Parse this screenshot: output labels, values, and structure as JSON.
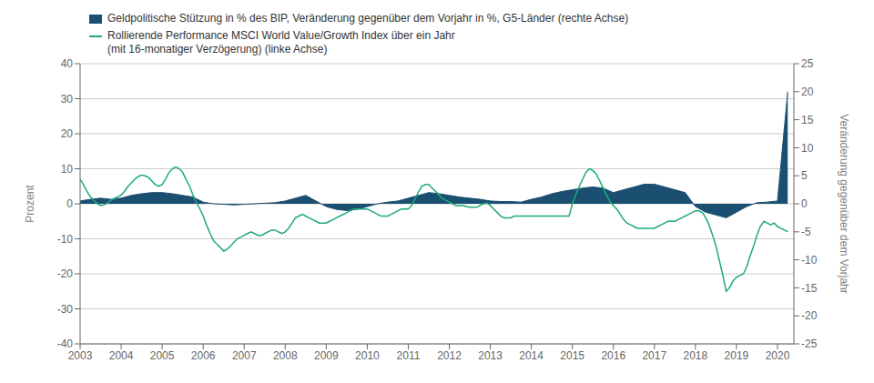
{
  "chart_data": {
    "type": "line",
    "xlim": [
      2003,
      2020.4
    ],
    "xticks": [
      2003,
      2004,
      2005,
      2006,
      2007,
      2008,
      2009,
      2010,
      2011,
      2012,
      2013,
      2014,
      2015,
      2016,
      2017,
      2018,
      2019,
      2020
    ],
    "ylim": [
      -40,
      40
    ],
    "yticks": [
      -40,
      -30,
      -20,
      -10,
      0,
      10,
      20,
      30,
      40
    ],
    "y2lim": [
      -25,
      25
    ],
    "y2ticks": [
      -25,
      -20,
      -15,
      -10,
      -5,
      0,
      5,
      10,
      15,
      20,
      25
    ],
    "ylabel": "Prozent",
    "y2label": "Veränderung gegenüber dem Vorjahr",
    "grid": true,
    "legend": "upper left",
    "series": [
      {
        "name": "Geldpolitische Stützung in % des BIP, Veränderung gegenüber dem Vorjahr in %, G5-Länder (rechte Achse)",
        "type": "area",
        "axis": "y2",
        "color": "#1b4f72",
        "x": [
          2003.0,
          2003.25,
          2003.5,
          2003.75,
          2004.0,
          2004.25,
          2004.5,
          2004.75,
          2005.0,
          2005.25,
          2005.5,
          2005.75,
          2006.0,
          2006.25,
          2006.5,
          2006.75,
          2007.0,
          2007.25,
          2007.5,
          2007.75,
          2008.0,
          2008.25,
          2008.5,
          2008.75,
          2009.0,
          2009.25,
          2009.5,
          2009.75,
          2010.0,
          2010.25,
          2010.5,
          2010.75,
          2011.0,
          2011.25,
          2011.5,
          2011.75,
          2012.0,
          2012.25,
          2012.5,
          2012.75,
          2013.0,
          2013.25,
          2013.5,
          2013.75,
          2014.0,
          2014.25,
          2014.5,
          2014.75,
          2015.0,
          2015.25,
          2015.5,
          2015.75,
          2016.0,
          2016.25,
          2016.5,
          2016.75,
          2017.0,
          2017.25,
          2017.5,
          2017.75,
          2018.0,
          2018.25,
          2018.5,
          2018.75,
          2019.0,
          2019.25,
          2019.5,
          2019.75,
          2020.0,
          2020.25
        ],
        "values": [
          0.5,
          0.8,
          1.0,
          0.8,
          1.0,
          1.5,
          1.8,
          2.0,
          2.0,
          1.8,
          1.5,
          1.2,
          0.3,
          0.0,
          -0.1,
          -0.2,
          -0.1,
          0.0,
          0.1,
          0.2,
          0.5,
          1.0,
          1.5,
          0.5,
          -0.5,
          -1.0,
          -1.2,
          -1.0,
          -0.5,
          0.0,
          0.3,
          0.5,
          1.0,
          1.5,
          2.0,
          1.8,
          1.5,
          1.2,
          1.0,
          0.8,
          0.5,
          0.4,
          0.4,
          0.3,
          0.8,
          1.2,
          1.8,
          2.2,
          2.5,
          2.8,
          3.0,
          2.8,
          2.0,
          2.5,
          3.0,
          3.5,
          3.5,
          3.0,
          2.5,
          2.0,
          -0.5,
          -1.5,
          -2.0,
          -2.5,
          -1.5,
          -0.5,
          0.2,
          0.3,
          0.5,
          20.0
        ]
      },
      {
        "name": "Rollierende Performance MSCI World Value/Growth Index über ein Jahr\n(mit 16-monatiger Verzögerung) (linke Achse)",
        "type": "line",
        "axis": "y",
        "color": "#1daa78",
        "x": [
          2003.0,
          2003.08,
          2003.17,
          2003.25,
          2003.33,
          2003.42,
          2003.5,
          2003.58,
          2003.67,
          2003.75,
          2003.83,
          2003.92,
          2004.0,
          2004.08,
          2004.17,
          2004.25,
          2004.33,
          2004.42,
          2004.5,
          2004.58,
          2004.67,
          2004.75,
          2004.83,
          2004.92,
          2005.0,
          2005.08,
          2005.17,
          2005.25,
          2005.33,
          2005.42,
          2005.5,
          2005.58,
          2005.67,
          2005.75,
          2005.83,
          2005.92,
          2006.0,
          2006.08,
          2006.17,
          2006.25,
          2006.33,
          2006.42,
          2006.5,
          2006.58,
          2006.67,
          2006.75,
          2006.83,
          2006.92,
          2007.0,
          2007.08,
          2007.17,
          2007.25,
          2007.33,
          2007.42,
          2007.5,
          2007.58,
          2007.67,
          2007.75,
          2007.83,
          2007.92,
          2008.0,
          2008.08,
          2008.17,
          2008.25,
          2008.33,
          2008.42,
          2008.5,
          2008.58,
          2008.67,
          2008.75,
          2008.83,
          2008.92,
          2009.0,
          2009.08,
          2009.17,
          2009.25,
          2009.33,
          2009.42,
          2009.5,
          2009.58,
          2009.67,
          2009.75,
          2009.83,
          2009.92,
          2010.0,
          2010.08,
          2010.17,
          2010.25,
          2010.33,
          2010.42,
          2010.5,
          2010.58,
          2010.67,
          2010.75,
          2010.83,
          2010.92,
          2011.0,
          2011.08,
          2011.17,
          2011.25,
          2011.33,
          2011.42,
          2011.5,
          2011.58,
          2011.67,
          2011.75,
          2011.83,
          2011.92,
          2012.0,
          2012.08,
          2012.17,
          2012.25,
          2012.33,
          2012.42,
          2012.5,
          2012.58,
          2012.67,
          2012.75,
          2012.83,
          2012.92,
          2013.0,
          2013.08,
          2013.17,
          2013.25,
          2013.33,
          2013.42,
          2013.5,
          2013.58,
          2013.67,
          2013.75,
          2013.83,
          2013.92,
          2014.0,
          2014.08,
          2014.17,
          2014.25,
          2014.33,
          2014.42,
          2014.5,
          2014.58,
          2014.67,
          2014.75,
          2014.83,
          2014.92,
          2015.0,
          2015.08,
          2015.17,
          2015.25,
          2015.33,
          2015.42,
          2015.5,
          2015.58,
          2015.67,
          2015.75,
          2015.83,
          2015.92,
          2016.0,
          2016.08,
          2016.17,
          2016.25,
          2016.33,
          2016.42,
          2016.5,
          2016.58,
          2016.67,
          2016.75,
          2016.83,
          2016.92,
          2017.0,
          2017.08,
          2017.17,
          2017.25,
          2017.33,
          2017.42,
          2017.5,
          2017.58,
          2017.67,
          2017.75,
          2017.83,
          2017.92,
          2018.0,
          2018.08,
          2018.17,
          2018.25,
          2018.33,
          2018.42,
          2018.5,
          2018.58,
          2018.67,
          2018.75,
          2018.83,
          2018.92,
          2019.0,
          2019.08,
          2019.17,
          2019.25,
          2019.33,
          2019.42,
          2019.5,
          2019.58,
          2019.67,
          2019.75,
          2019.83,
          2019.92,
          2020.0,
          2020.08,
          2020.17,
          2020.25
        ],
        "values": [
          7.0,
          5.5,
          3.5,
          2.0,
          1.0,
          0.0,
          -0.5,
          -0.3,
          0.3,
          1.0,
          1.5,
          2.0,
          2.5,
          3.5,
          5.0,
          6.0,
          7.0,
          7.8,
          8.2,
          8.0,
          7.5,
          6.5,
          5.5,
          5.0,
          5.5,
          7.0,
          9.0,
          10.0,
          10.5,
          10.0,
          9.0,
          7.0,
          5.0,
          2.5,
          0.5,
          -1.5,
          -3.5,
          -6.0,
          -8.5,
          -10.5,
          -11.5,
          -12.5,
          -13.5,
          -13.0,
          -12.0,
          -11.0,
          -10.0,
          -9.5,
          -9.0,
          -8.5,
          -8.0,
          -8.5,
          -9.0,
          -9.0,
          -8.5,
          -8.0,
          -7.5,
          -7.5,
          -8.0,
          -8.5,
          -8.0,
          -7.0,
          -5.5,
          -4.0,
          -3.5,
          -3.0,
          -3.5,
          -4.0,
          -4.5,
          -5.0,
          -5.5,
          -5.5,
          -5.5,
          -5.0,
          -4.5,
          -4.0,
          -3.5,
          -3.0,
          -2.5,
          -2.0,
          -1.5,
          -1.5,
          -1.5,
          -1.5,
          -1.5,
          -2.0,
          -2.5,
          -3.0,
          -3.5,
          -3.5,
          -3.5,
          -3.0,
          -2.5,
          -2.0,
          -1.5,
          -1.5,
          -1.5,
          -0.5,
          1.5,
          3.5,
          5.0,
          5.5,
          5.5,
          4.5,
          3.5,
          2.5,
          1.5,
          1.0,
          0.5,
          0.0,
          -0.5,
          -0.5,
          -0.5,
          -0.8,
          -1.0,
          -1.0,
          -1.0,
          -0.5,
          0.0,
          0.2,
          -0.5,
          -1.5,
          -2.5,
          -3.5,
          -4.0,
          -4.0,
          -4.0,
          -3.5,
          -3.5,
          -3.5,
          -3.5,
          -3.5,
          -3.5,
          -3.5,
          -3.5,
          -3.5,
          -3.5,
          -3.5,
          -3.5,
          -3.5,
          -3.5,
          -3.5,
          -3.5,
          -3.5,
          0.0,
          2.5,
          5.0,
          7.0,
          9.0,
          10.0,
          9.5,
          8.5,
          6.5,
          4.5,
          2.5,
          0.5,
          -0.5,
          -1.5,
          -3.0,
          -4.5,
          -5.5,
          -6.0,
          -6.5,
          -7.0,
          -7.0,
          -7.0,
          -7.0,
          -7.0,
          -7.0,
          -6.5,
          -6.0,
          -5.5,
          -5.0,
          -5.0,
          -5.0,
          -4.5,
          -4.0,
          -3.5,
          -3.0,
          -2.5,
          -2.0,
          -2.0,
          -2.5,
          -4.0,
          -6.0,
          -9.0,
          -12.0,
          -16.0,
          -20.5,
          -25.0,
          -24.0,
          -22.0,
          -21.0,
          -20.5,
          -20.0,
          -18.0,
          -15.0,
          -12.0,
          -9.0,
          -6.5,
          -5.0,
          -5.5,
          -6.0,
          -5.5,
          -6.5,
          -7.0,
          -7.5,
          -8.0
        ]
      }
    ]
  }
}
